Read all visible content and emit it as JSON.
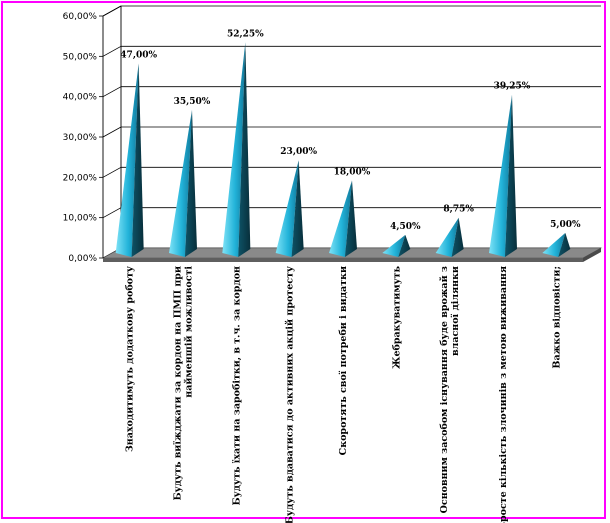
{
  "chart_data": {
    "type": "bar",
    "shape": "pyramid-3d",
    "categories": [
      [
        "Знаходитимуть додаткову роботу"
      ],
      [
        "Будуть виїжджати за кордон на ПМП при",
        "найменшій можливості"
      ],
      [
        "Будуть їхати на заробітки, в т.ч. за кордон"
      ],
      [
        "Будуть вдаватися до активних акцій протесту"
      ],
      [
        "Скоротять свої потреби і видатки"
      ],
      [
        "Жебракуватимуть"
      ],
      [
        "Основним засобом існування буде врожай з",
        "власної ділянки"
      ],
      [
        "Зросте кількість злочинів з метою виживання"
      ],
      [
        "Важко відповісти;"
      ]
    ],
    "values": [
      47.0,
      35.5,
      52.25,
      23.0,
      18.0,
      4.5,
      8.75,
      39.25,
      5.0
    ],
    "value_labels": [
      "47,00%",
      "35,50%",
      "52,25%",
      "23,00%",
      "18,00%",
      "4,50%",
      "8,75%",
      "39,25%",
      "5,00%"
    ],
    "yticks": [
      "0,00%",
      "10,00%",
      "20,00%",
      "30,00%",
      "40,00%",
      "50,00%",
      "60,00%"
    ],
    "ylim": [
      0,
      60
    ],
    "grid": true,
    "legend": "none",
    "colors": {
      "pyramid_light": "#33c6e8",
      "pyramid_dark": "#0b3d4c",
      "floor": "#8a8a8a",
      "floor_front": "#5f5f5f",
      "frame": "#ff00ff"
    }
  }
}
